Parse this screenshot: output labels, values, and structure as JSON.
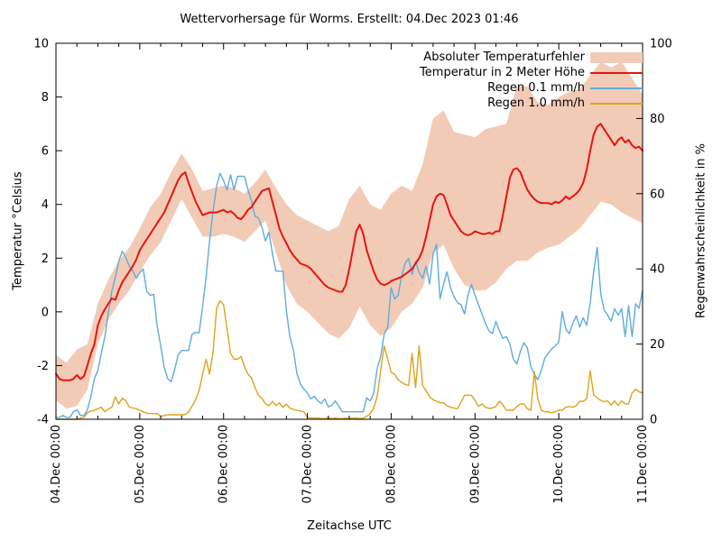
{
  "title": "Wettervorhersage für Worms. Erstellt: 04.Dec 2023 01:46",
  "chart_data": {
    "type": "line",
    "title": "Wettervorhersage für Worms. Erstellt: 04.Dec 2023 01:46",
    "xlabel": "Zeitachse UTC",
    "ylabel_left": "Temperatur °Celsius",
    "ylabel_right": "Regenwahrscheinlichkeit in %",
    "xlim_hours": [
      0,
      168
    ],
    "ylim_left": [
      -4,
      10
    ],
    "ylim_right": [
      0,
      100
    ],
    "x_tick_hours": [
      0,
      24,
      48,
      72,
      96,
      120,
      144,
      168
    ],
    "x_tick_labels": [
      "04.Dec 00:00",
      "05.Dec 00:00",
      "06.Dec 00:00",
      "07.Dec 00:00",
      "08.Dec 00:00",
      "09.Dec 00:00",
      "10.Dec 00:00",
      "11.Dec 00:00"
    ],
    "x_minor_tick_step_hours": 6,
    "y_ticks_left": [
      -4,
      -2,
      0,
      2,
      4,
      6,
      8,
      10
    ],
    "y_ticks_right": [
      0,
      20,
      40,
      60,
      80,
      100
    ],
    "grid": false,
    "legend_position": "top-right-inside",
    "series": [
      {
        "name": "Absoluter Temperaturfehler",
        "type": "band",
        "axis": "left",
        "color": "#f2cbb7",
        "x_step_hours": 3,
        "upper": [
          -1.6,
          -1.9,
          -1.4,
          -1.2,
          0.3,
          1.2,
          1.9,
          2.4,
          3.1,
          3.9,
          4.4,
          5.2,
          5.9,
          5.3,
          4.5,
          4.6,
          4.7,
          4.6,
          4.4,
          4.8,
          5.3,
          4.6,
          4.0,
          3.6,
          3.4,
          3.2,
          3.0,
          3.2,
          4.2,
          4.7,
          4.0,
          3.8,
          4.4,
          4.7,
          4.5,
          5.5,
          7.2,
          7.5,
          6.7,
          6.6,
          6.5,
          6.8,
          6.9,
          7.0,
          8.4,
          8.4,
          7.8,
          7.7,
          8.0,
          8.2,
          8.3,
          8.8,
          9.3,
          9.1,
          9.3,
          8.7,
          8.1
        ],
        "lower": [
          -3.3,
          -3.6,
          -3.5,
          -2.9,
          -1.2,
          -0.3,
          0.3,
          0.8,
          1.5,
          2.1,
          2.6,
          3.4,
          4.2,
          3.5,
          2.8,
          2.8,
          2.9,
          2.8,
          2.6,
          3.0,
          3.4,
          2.2,
          1.0,
          0.3,
          0.0,
          -0.4,
          -0.8,
          -1.0,
          -0.6,
          0.2,
          -0.5,
          -0.9,
          -0.6,
          0.0,
          0.3,
          0.9,
          2.2,
          2.5,
          1.6,
          1.0,
          0.8,
          0.8,
          1.1,
          1.6,
          1.9,
          1.9,
          2.2,
          2.4,
          2.5,
          2.8,
          3.1,
          3.6,
          4.1,
          4.0,
          3.7,
          3.5,
          3.3
        ]
      },
      {
        "name": "Temperatur in 2 Meter Höhe",
        "type": "line",
        "axis": "left",
        "color": "#e8140e",
        "x_step_hours": 1,
        "values": [
          -2.3,
          -2.5,
          -2.55,
          -2.55,
          -2.55,
          -2.5,
          -2.35,
          -2.5,
          -2.4,
          -2.0,
          -1.55,
          -1.2,
          -0.5,
          -0.15,
          0.1,
          0.3,
          0.5,
          0.45,
          0.8,
          1.1,
          1.3,
          1.5,
          1.7,
          1.95,
          2.3,
          2.5,
          2.7,
          2.9,
          3.1,
          3.3,
          3.5,
          3.7,
          4.0,
          4.3,
          4.6,
          4.9,
          5.1,
          5.2,
          4.8,
          4.45,
          4.1,
          3.85,
          3.6,
          3.65,
          3.7,
          3.7,
          3.7,
          3.75,
          3.8,
          3.7,
          3.75,
          3.65,
          3.5,
          3.45,
          3.6,
          3.8,
          3.9,
          4.1,
          4.3,
          4.5,
          4.55,
          4.6,
          4.1,
          3.6,
          3.1,
          2.8,
          2.55,
          2.3,
          2.1,
          1.95,
          1.8,
          1.75,
          1.7,
          1.6,
          1.45,
          1.3,
          1.15,
          1.0,
          0.9,
          0.85,
          0.8,
          0.75,
          0.75,
          1.0,
          1.6,
          2.3,
          3.0,
          3.25,
          2.9,
          2.3,
          1.9,
          1.5,
          1.2,
          1.05,
          1.0,
          1.05,
          1.15,
          1.2,
          1.25,
          1.3,
          1.4,
          1.5,
          1.6,
          1.8,
          2.0,
          2.3,
          2.8,
          3.4,
          4.0,
          4.3,
          4.4,
          4.35,
          4.0,
          3.6,
          3.4,
          3.2,
          3.0,
          2.9,
          2.85,
          2.9,
          3.0,
          2.95,
          2.9,
          2.9,
          2.95,
          2.9,
          3.0,
          3.0,
          3.6,
          4.3,
          5.0,
          5.3,
          5.35,
          5.2,
          4.85,
          4.55,
          4.35,
          4.2,
          4.1,
          4.05,
          4.05,
          4.05,
          4.0,
          4.1,
          4.05,
          4.15,
          4.3,
          4.2,
          4.3,
          4.4,
          4.55,
          4.8,
          5.3,
          6.0,
          6.6,
          6.9,
          7.0,
          6.8,
          6.6,
          6.4,
          6.2,
          6.4,
          6.5,
          6.3,
          6.4,
          6.2,
          6.1,
          6.15,
          6.0
        ]
      },
      {
        "name": "Regen 0.1 mm/h",
        "type": "line",
        "axis": "right",
        "color": "#5fabdd",
        "x_step_hours": 1,
        "values": [
          0.5,
          0.5,
          1,
          0.5,
          0.5,
          2,
          2.5,
          1,
          1,
          2.5,
          6,
          10.8,
          13,
          17.6,
          22,
          28.2,
          34,
          37.8,
          42,
          44.7,
          43,
          40.7,
          39.5,
          37.5,
          39,
          40,
          34,
          33,
          33.2,
          24.7,
          19.5,
          13.9,
          10.8,
          10,
          13.2,
          17.1,
          18.3,
          18.3,
          18.3,
          22.7,
          23.1,
          23,
          29.9,
          37.9,
          47.4,
          55.4,
          62,
          65.4,
          63.5,
          61,
          65,
          61,
          64.6,
          64.6,
          64.6,
          61,
          58,
          54,
          53.5,
          51,
          47.4,
          49.8,
          44,
          39.4,
          39.4,
          39.4,
          28.7,
          22,
          18.4,
          12.2,
          9.4,
          8,
          7,
          5.4,
          6.1,
          4.9,
          4.2,
          5.4,
          3.3,
          3.7,
          4.9,
          3.5,
          2,
          2,
          2,
          2,
          2,
          2,
          2,
          5.7,
          4.9,
          6.9,
          13.5,
          16.7,
          22.7,
          24.5,
          35,
          32,
          33,
          38,
          41.5,
          42.8,
          38.5,
          42,
          39,
          37.5,
          40.8,
          36,
          44,
          46.5,
          32,
          36,
          39.2,
          35,
          32.6,
          31,
          30.5,
          28,
          33,
          35.9,
          33,
          30.5,
          28,
          25.5,
          23.5,
          22.8,
          26,
          23.5,
          21.5,
          22,
          20,
          16,
          14.7,
          18,
          20.3,
          19,
          14,
          12,
          10.5,
          13,
          16.3,
          17.5,
          18.8,
          19.5,
          20.5,
          28.6,
          24,
          22.8,
          25.5,
          27.5,
          24.5,
          27,
          25,
          31,
          39.2,
          45.7,
          33.5,
          29,
          27.7,
          26.1,
          29.4,
          27.7,
          29.4,
          22,
          30.2,
          22,
          30.7,
          29.5,
          34.3
        ]
      },
      {
        "name": "Regen 1.0 mm/h",
        "type": "line",
        "axis": "right",
        "color": "#dfa21c",
        "x_step_hours": 1,
        "values": [
          0,
          0,
          0,
          0,
          0,
          0,
          0,
          0.3,
          0.5,
          1.7,
          2.2,
          2.4,
          2.8,
          3.2,
          2,
          2.7,
          3.2,
          6,
          4.1,
          5.6,
          4.9,
          3.2,
          3,
          2.8,
          2.4,
          2,
          1.6,
          1.5,
          1.5,
          1.5,
          0.8,
          1,
          1.2,
          1.2,
          1.2,
          1.2,
          1.2,
          1.2,
          2,
          3.5,
          5.2,
          7.6,
          12,
          16,
          12,
          18,
          29.5,
          31.5,
          30.5,
          24,
          17.5,
          16,
          16,
          16.7,
          14,
          12,
          11,
          8.5,
          6.4,
          5.5,
          4.2,
          3.6,
          4.8,
          3.6,
          4.4,
          3.2,
          4,
          3,
          2.6,
          2.4,
          2.2,
          2,
          0.5,
          0.3,
          0.3,
          0.3,
          0.2,
          0.2,
          0.3,
          0.2,
          0.3,
          0.2,
          0.2,
          0.3,
          0.2,
          0.3,
          0.3,
          0.2,
          0.3,
          0.8,
          1.5,
          3,
          6.1,
          13,
          19.5,
          16,
          12.5,
          12,
          10.5,
          9.8,
          9.3,
          9,
          17.5,
          8.4,
          19.5,
          9,
          7.6,
          6,
          5.2,
          4.8,
          4.4,
          4.4,
          3.6,
          3.2,
          3,
          2.8,
          4.5,
          6.4,
          6.4,
          6.4,
          5,
          3.4,
          4.1,
          3.2,
          2.9,
          3,
          3.4,
          4.8,
          3.8,
          2.4,
          2.4,
          2.4,
          3.4,
          4.1,
          4.1,
          2.8,
          2.4,
          12.6,
          5.5,
          2.4,
          2,
          2,
          1.7,
          2,
          2.4,
          2.4,
          3.2,
          3.4,
          3.2,
          3.6,
          4.8,
          4.8,
          5.4,
          12.9,
          6.5,
          5.7,
          5,
          4.7,
          4.9,
          3.7,
          4.9,
          3.7,
          4.9,
          4.1,
          4.1,
          7,
          8,
          7.3,
          7
        ]
      }
    ]
  },
  "colors": {
    "background": "#ffffff",
    "axis": "#000000",
    "band": "#f2cbb7",
    "temperature": "#e8140e",
    "rain01": "#5fabdd",
    "rain10": "#dfa21c"
  }
}
